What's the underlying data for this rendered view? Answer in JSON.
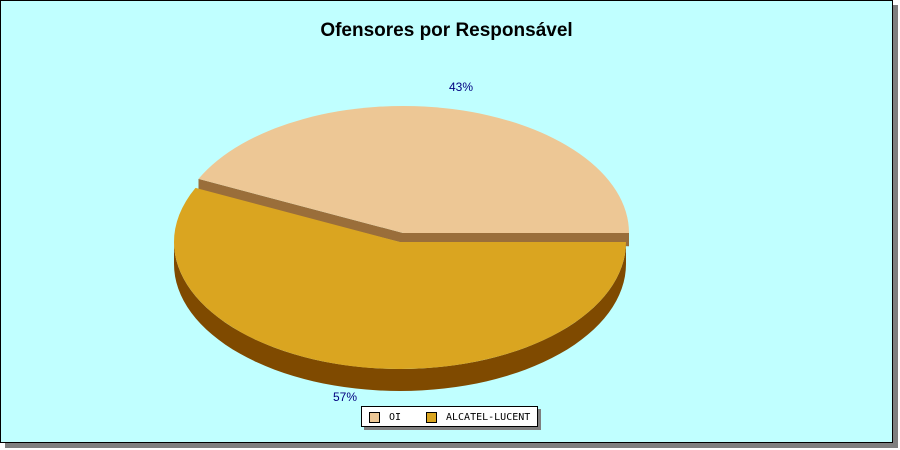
{
  "chart_data": {
    "type": "pie",
    "title": "Ofensores por Responsável",
    "slices": [
      {
        "label": "OI",
        "value": 43,
        "pct_label": "43%",
        "color": "#edc795",
        "side_color": "#9a6e3a"
      },
      {
        "label": "ALCATEL-LUCENT",
        "value": 57,
        "pct_label": "57%",
        "color": "#daa520",
        "side_color": "#7f4a00"
      }
    ],
    "legend": "bottom",
    "label_color": "#000080"
  },
  "colors": {
    "background": "#c0ffff",
    "frame_border": "#000000"
  }
}
